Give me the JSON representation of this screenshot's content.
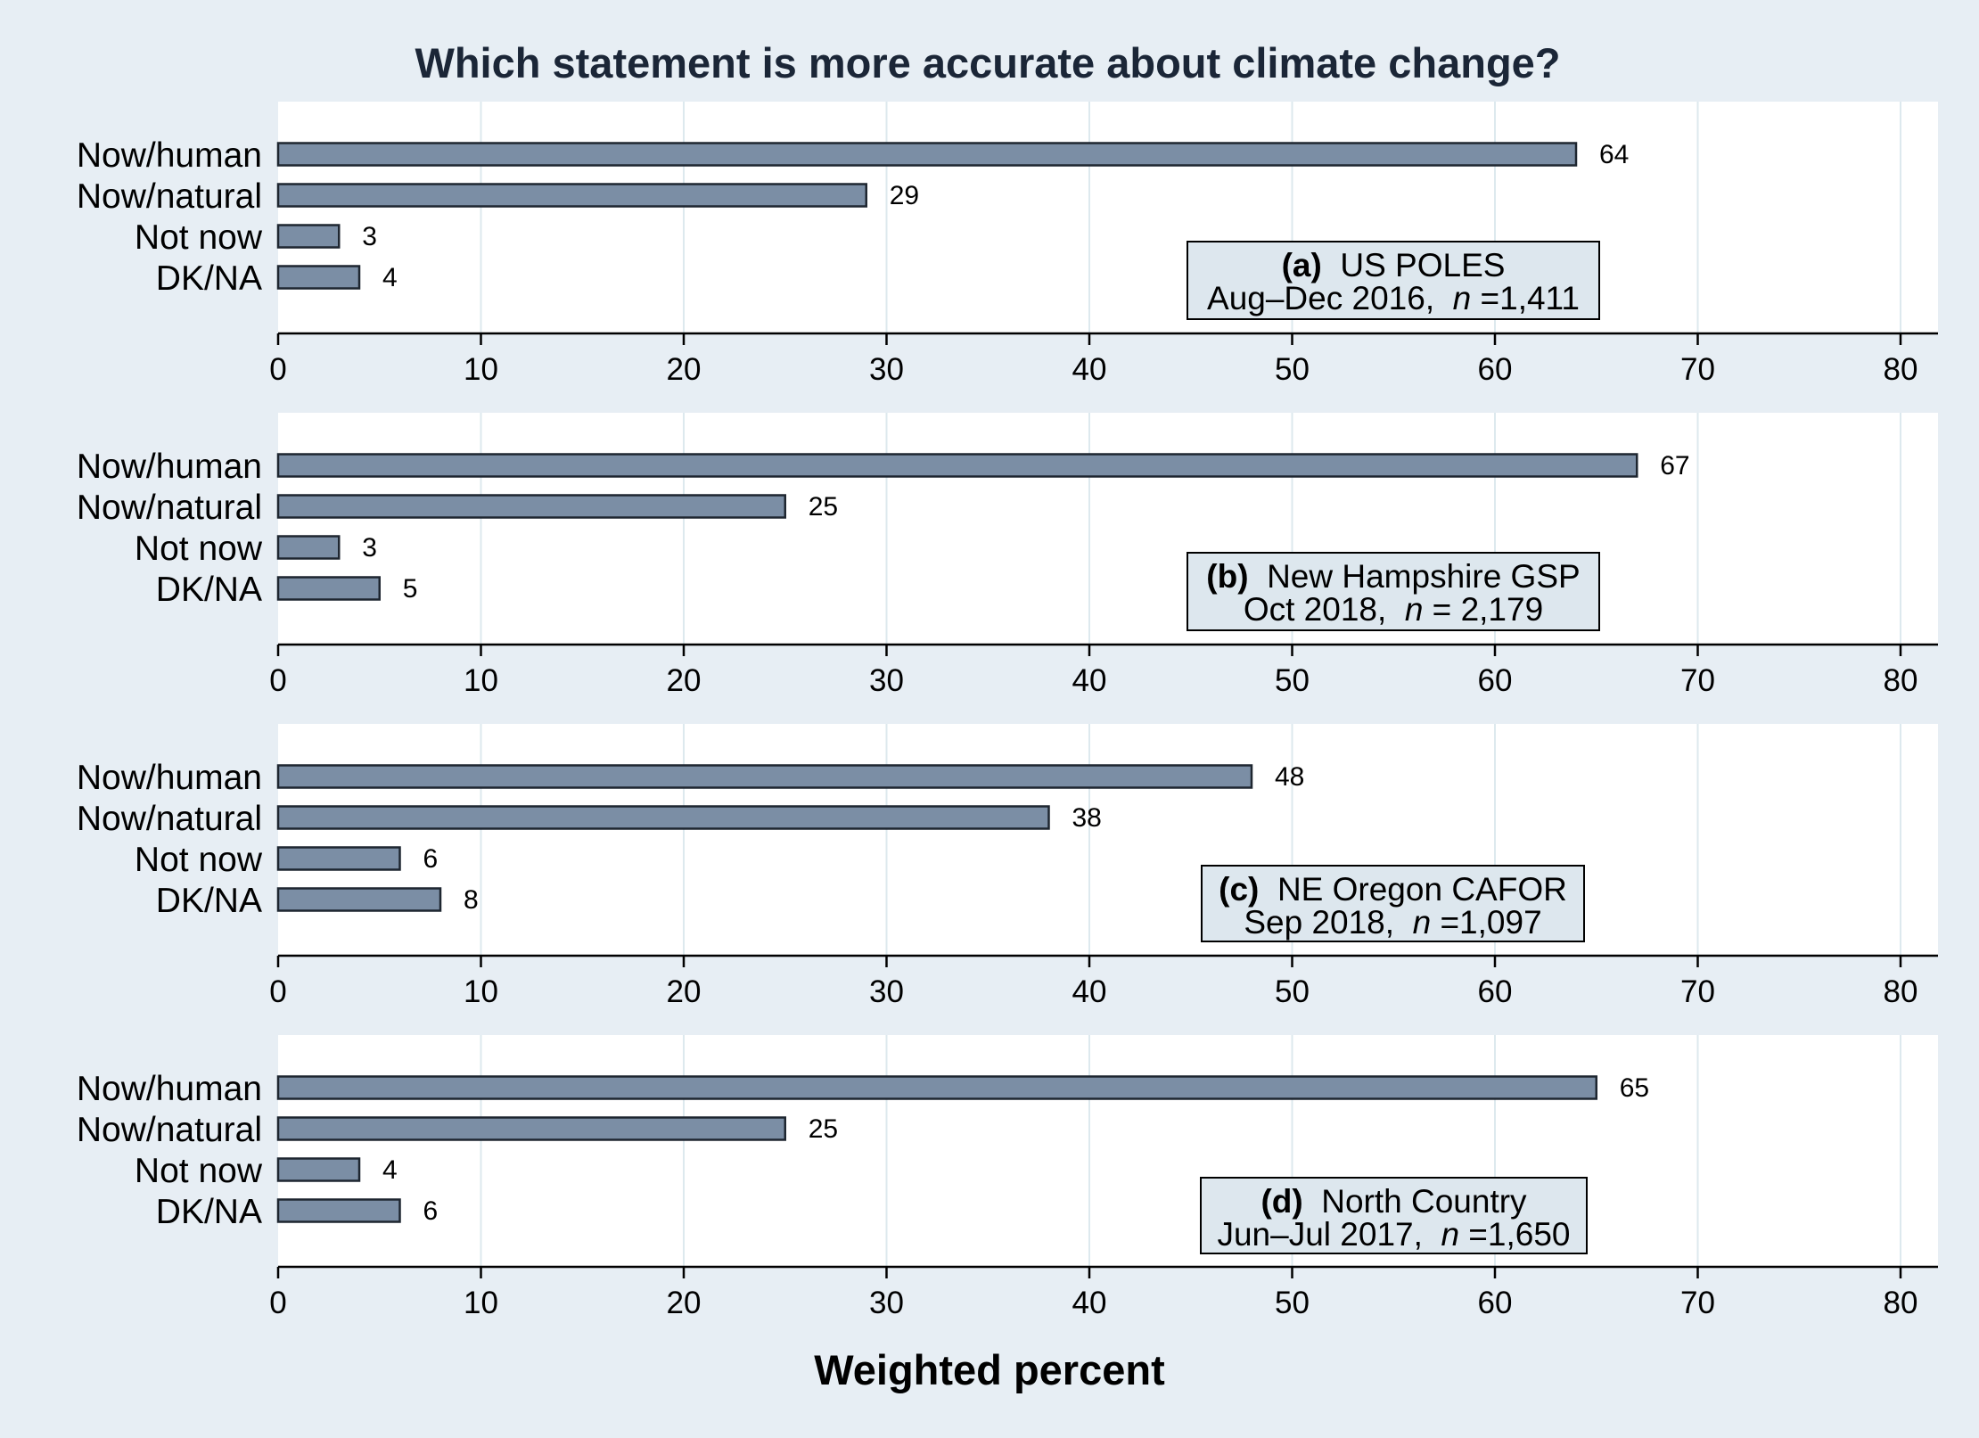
{
  "chart_data": {
    "type": "bar",
    "orientation": "horizontal",
    "title": "Which statement is more accurate about climate change?",
    "xlabel": "Weighted percent",
    "xlim": [
      0,
      80
    ],
    "xticks": [
      0,
      10,
      20,
      30,
      40,
      50,
      60,
      70,
      80
    ],
    "grid": true,
    "categories": [
      "Now/human",
      "Now/natural",
      "Not now",
      "DK/NA"
    ],
    "colors": {
      "bar": "#7b8ea5",
      "bar_edge": "#1e2630",
      "panel_bg": "#ffffff",
      "outer_bg": "#e7eef4",
      "box_bg": "#dde7ee",
      "grid": "#dde9ee",
      "title": "#1b2637"
    },
    "panels": [
      {
        "tag": "(a)",
        "name": "US POLES",
        "line2_pre": "Aug–Dec 2016,",
        "n_symbol": "n",
        "n_text": "=1,411",
        "values": [
          64,
          29,
          3,
          4
        ],
        "labels": [
          "64",
          "29",
          "3",
          "4"
        ]
      },
      {
        "tag": "(b)",
        "name": "New Hampshire GSP",
        "line2_pre": "Oct 2018,",
        "n_symbol": "n",
        "n_text": "= 2,179",
        "values": [
          67,
          25,
          3,
          5
        ],
        "labels": [
          "67",
          "25",
          "3",
          "5"
        ]
      },
      {
        "tag": "(c)",
        "name": "NE Oregon CAFOR",
        "line2_pre": "Sep 2018,",
        "n_symbol": "n",
        "n_text": "=1,097",
        "values": [
          48,
          38,
          6,
          8
        ],
        "labels": [
          "48",
          "38",
          "6",
          "8"
        ]
      },
      {
        "tag": "(d)",
        "name": "North Country",
        "line2_pre": "Jun–Jul 2017,",
        "n_symbol": "n",
        "n_text": "=1,650",
        "values": [
          65,
          25,
          4,
          6
        ],
        "labels": [
          "65",
          "25",
          "4",
          "6"
        ]
      }
    ]
  }
}
